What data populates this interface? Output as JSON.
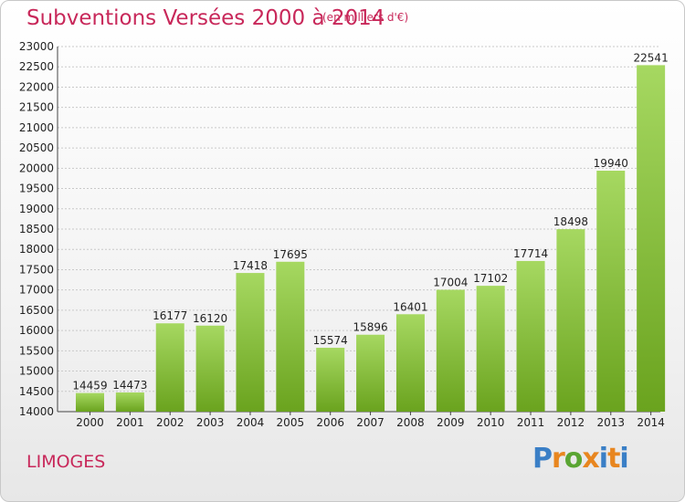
{
  "title": "Subventions Versées 2000 à 2014",
  "subtitle": "(en milliers d'€)",
  "city": "LIMOGES",
  "logo": {
    "text": "Proxiti",
    "colors": [
      "#3a7fc6",
      "#e8861f",
      "#5aa533",
      "#e8861f",
      "#3a7fc6",
      "#e8861f",
      "#3a7fc6"
    ]
  },
  "colors": {
    "accent": "#c8285a",
    "bar_top": "#a6d861",
    "bar_bottom": "#6aa31e"
  },
  "chart_data": {
    "type": "bar",
    "categories": [
      "2000",
      "2001",
      "2002",
      "2003",
      "2004",
      "2005",
      "2006",
      "2007",
      "2008",
      "2009",
      "2010",
      "2011",
      "2012",
      "2013",
      "2014"
    ],
    "values": [
      14459,
      14473,
      16177,
      16120,
      17418,
      17695,
      15574,
      15896,
      16401,
      17004,
      17102,
      17714,
      18498,
      19940,
      22541
    ],
    "ylim": [
      14000,
      23000
    ],
    "yticks": [
      14000,
      14500,
      15000,
      15500,
      16000,
      16500,
      17000,
      17500,
      18000,
      18500,
      19000,
      19500,
      20000,
      20500,
      21000,
      21500,
      22000,
      22500,
      23000
    ],
    "grid": true
  }
}
